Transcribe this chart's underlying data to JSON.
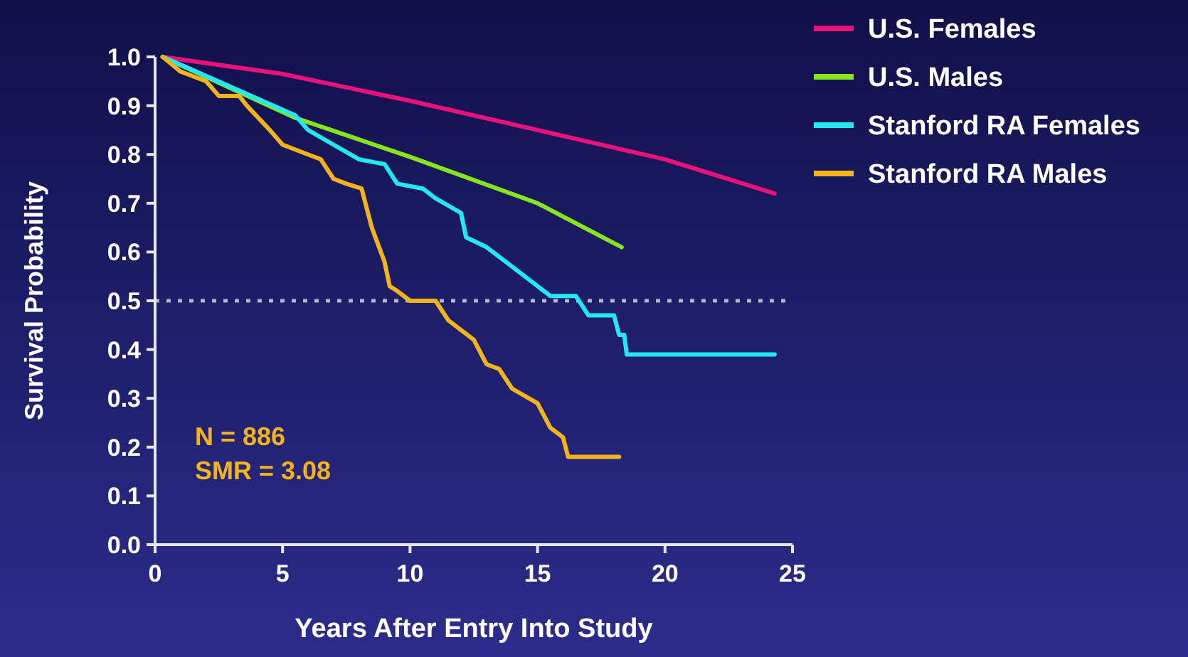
{
  "chart_data": {
    "type": "line",
    "xlabel": "Years After Entry Into Study",
    "ylabel": "Survival Probability",
    "xlim": [
      0,
      25
    ],
    "xticks": [
      0,
      5,
      10,
      15,
      20,
      25
    ],
    "ylim": [
      0,
      1
    ],
    "yticks": [
      {
        "value": 0,
        "label": "0.0"
      },
      {
        "value": 0.1,
        "label": "0.1"
      },
      {
        "value": 0.2,
        "label": "0.2"
      },
      {
        "value": 0.3,
        "label": "0.3"
      },
      {
        "value": 0.4,
        "label": "0.4"
      },
      {
        "value": 0.5,
        "label": "0.5"
      },
      {
        "value": 0.6,
        "label": "0.6"
      },
      {
        "value": 0.7,
        "label": "0.7"
      },
      {
        "value": 0.8,
        "label": "0.8"
      },
      {
        "value": 0.9,
        "label": "0.9"
      },
      {
        "value": 1,
        "label": "1.0"
      }
    ],
    "legend": "top right",
    "grid": false,
    "marker": "none",
    "line_style": "solid",
    "ref_lines": [
      {
        "axis": "y",
        "value": 0.5,
        "color": "#b4b4c8",
        "line_style": "dotted"
      }
    ],
    "annotations": [
      "N = 886",
      "SMR = 3.08"
    ],
    "series": [
      {
        "name": "U.S. Females",
        "color": "#e8127a",
        "x": [
          0.3,
          5,
          10,
          15,
          20,
          24.3
        ],
        "values": [
          1.0,
          0.965,
          0.91,
          0.85,
          0.79,
          0.72
        ]
      },
      {
        "name": "U.S. Males",
        "color": "#86e61e",
        "x": [
          0.3,
          5.5,
          10,
          15,
          18.3
        ],
        "values": [
          1.0,
          0.875,
          0.795,
          0.7,
          0.61
        ]
      },
      {
        "name": "Stanford RA Females",
        "color": "#22e8f2",
        "x": [
          0.3,
          5.5,
          6,
          7,
          8,
          9,
          9.5,
          10.5,
          11,
          12,
          12.2,
          13,
          14,
          15,
          15.5,
          16.5,
          17,
          18,
          18.2,
          18.4,
          18.5,
          24.3
        ],
        "values": [
          1.0,
          0.88,
          0.85,
          0.82,
          0.79,
          0.78,
          0.74,
          0.73,
          0.71,
          0.68,
          0.63,
          0.61,
          0.57,
          0.53,
          0.51,
          0.51,
          0.47,
          0.47,
          0.43,
          0.43,
          0.39,
          0.39
        ]
      },
      {
        "name": "Stanford RA Males",
        "color": "#f2b418",
        "x": [
          0.3,
          1,
          2,
          2.5,
          3.3,
          3.6,
          4.5,
          5,
          6,
          6.5,
          7,
          7.5,
          8.1,
          8.5,
          9,
          9.2,
          9.5,
          10,
          11,
          11.5,
          12.5,
          13,
          13.5,
          14,
          15,
          15.5,
          16,
          16.2,
          18.2
        ],
        "values": [
          1.0,
          0.97,
          0.95,
          0.92,
          0.92,
          0.9,
          0.85,
          0.82,
          0.8,
          0.79,
          0.75,
          0.74,
          0.73,
          0.65,
          0.58,
          0.53,
          0.52,
          0.5,
          0.5,
          0.46,
          0.42,
          0.37,
          0.36,
          0.32,
          0.29,
          0.24,
          0.22,
          0.18,
          0.18
        ]
      }
    ]
  }
}
